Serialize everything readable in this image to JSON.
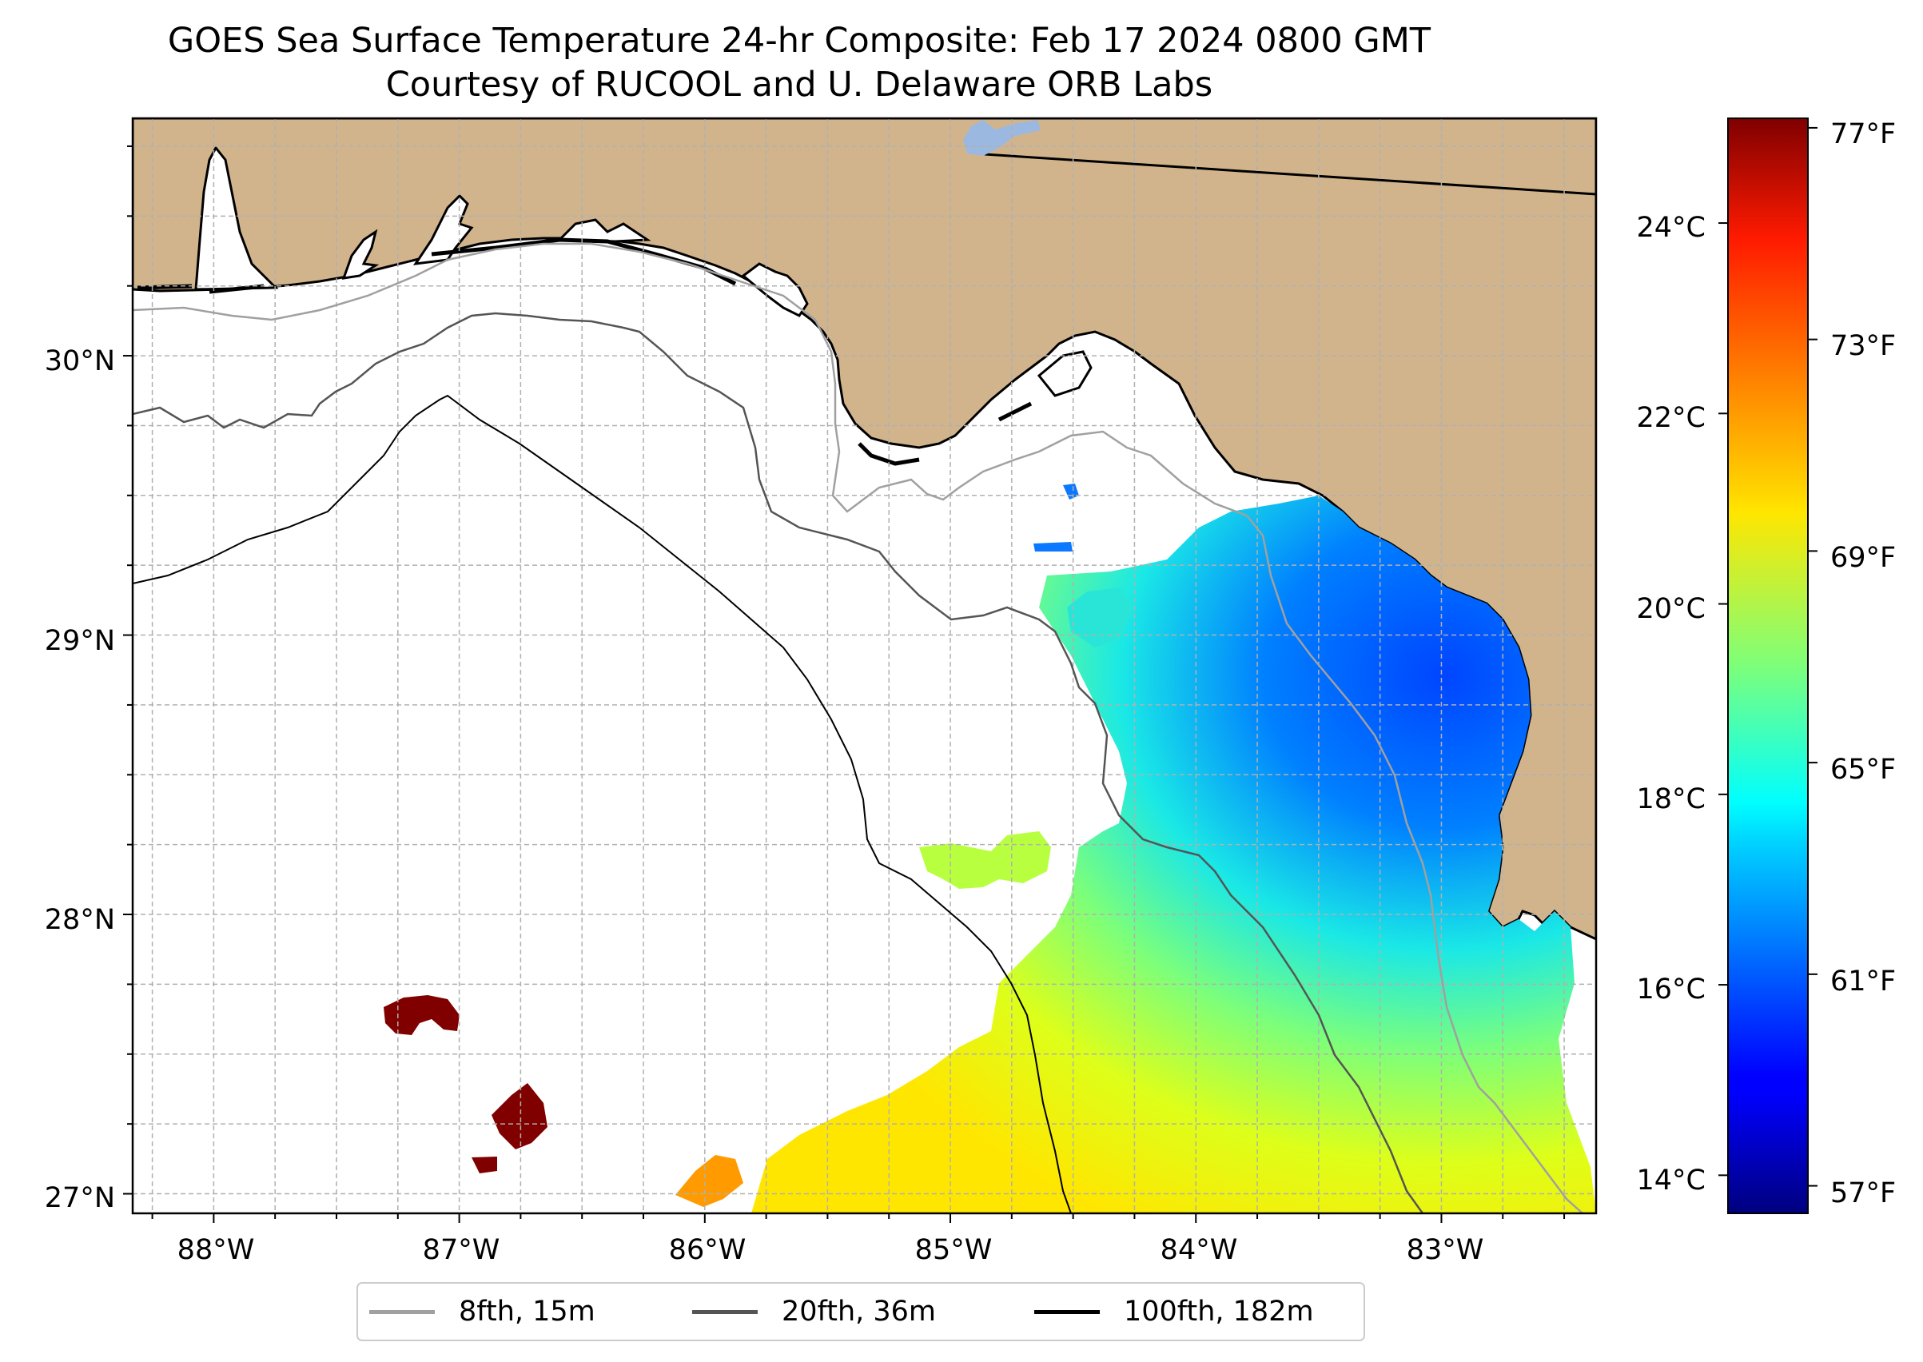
{
  "title": "GOES Sea Surface Temperature 24-hr Composite: Feb 17 2024 0800 GMT",
  "subtitle": "Courtesy of RUCOOL and U. Delaware ORB Labs",
  "map": {
    "lon_range": [
      -88.33,
      -82.37
    ],
    "lat_range": [
      26.93,
      30.85
    ],
    "lon_ticks": [
      -88,
      -87,
      -86,
      -85,
      -84,
      -83
    ],
    "lon_labels": [
      "88°W",
      "87°W",
      "86°W",
      "85°W",
      "84°W",
      "83°W"
    ],
    "lat_ticks": [
      27,
      28,
      29,
      30
    ],
    "lat_labels": [
      "27°N",
      "28°N",
      "29°N",
      "30°N"
    ],
    "colors": {
      "land": "#d2b48c",
      "water": "#ffffff",
      "grid": "#b0b0b0",
      "lake": "#9ab8e0"
    }
  },
  "colorbar": {
    "colormap": "jet",
    "celsius_range": [
      13.6,
      25.1
    ],
    "celsius_ticks": [
      14,
      16,
      18,
      20,
      22,
      24
    ],
    "celsius_labels": [
      "14°C",
      "16°C",
      "18°C",
      "20°C",
      "22°C",
      "24°C"
    ],
    "fahrenheit_ticks": [
      57,
      61,
      65,
      69,
      73,
      77
    ],
    "fahrenheit_labels": [
      "57°F",
      "61°F",
      "65°F",
      "69°F",
      "73°F",
      "77°F"
    ]
  },
  "legend": {
    "items": [
      {
        "label": "8fth, 15m",
        "color": "#a0a0a0"
      },
      {
        "label": "20fth, 36m",
        "color": "#555555"
      },
      {
        "label": "100fth, 182m",
        "color": "#000000"
      }
    ]
  }
}
